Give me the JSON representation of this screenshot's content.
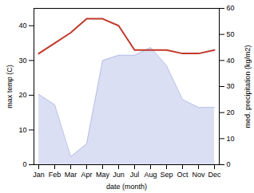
{
  "chart_data": {
    "type": "line",
    "xlabel": "date (month)",
    "ylabel": "max temp (C)",
    "y2label": "med. precipitation (kg/m2)",
    "categories": [
      "Jan",
      "Feb",
      "Mar",
      "Apr",
      "May",
      "Jun",
      "Jul",
      "Aug",
      "Sep",
      "Oct",
      "Nov",
      "Dec"
    ],
    "series": [
      {
        "type": "area",
        "axis": "y2",
        "color": "#b8c0e8",
        "values": [
          27,
          23,
          3,
          8,
          40,
          42,
          42,
          45,
          38,
          25,
          22,
          22
        ]
      },
      {
        "type": "line",
        "color": "#c0392b",
        "values": [
          32,
          35,
          38,
          42,
          42,
          40,
          33,
          33,
          33,
          32,
          32,
          33
        ]
      }
    ],
    "ylim": [
      0,
      45
    ],
    "yticks": [
      0,
      10,
      20,
      30,
      40
    ],
    "y2lim": [
      0,
      60
    ],
    "y2ticks": [
      0,
      10,
      20,
      30,
      40,
      50,
      60
    ],
    "grid": false
  }
}
